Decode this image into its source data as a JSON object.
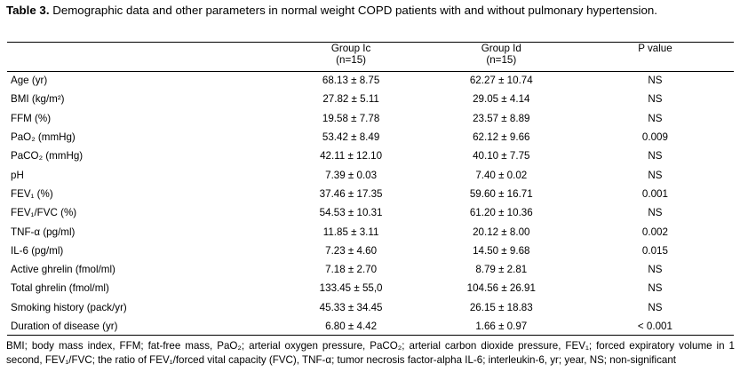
{
  "caption": {
    "label": "Table 3.",
    "text": "Demographic data and other parameters in normal weight COPD patients with and without pulmonary hypertension."
  },
  "columns": [
    {
      "name": "",
      "n": ""
    },
    {
      "name": "Group Ic",
      "n": "(n=15)"
    },
    {
      "name": "Group Id",
      "n": "(n=15)"
    },
    {
      "name": "P value",
      "n": ""
    }
  ],
  "rows": [
    {
      "param": "Age (yr)",
      "ic": "68.13 ± 8.75",
      "id": "62.27 ± 10.74",
      "p": "NS"
    },
    {
      "param": "BMI (kg/m²)",
      "ic": "27.82 ± 5.11",
      "id": "29.05 ± 4.14",
      "p": "NS"
    },
    {
      "param": "FFM (%)",
      "ic": "19.58 ± 7.78",
      "id": "23.57 ± 8.89",
      "p": "NS"
    },
    {
      "param": "PaO₂ (mmHg)",
      "ic": "53.42 ± 8.49",
      "id": "62.12 ± 9.66",
      "p": "0.009"
    },
    {
      "param": "PaCO₂ (mmHg)",
      "ic": "42.11 ± 12.10",
      "id": "40.10 ± 7.75",
      "p": "NS"
    },
    {
      "param": "pH",
      "ic": "7.39 ± 0.03",
      "id": "7.40 ± 0.02",
      "p": "NS"
    },
    {
      "param": "FEV₁ (%)",
      "ic": "37.46 ± 17.35",
      "id": "59.60 ± 16.71",
      "p": "0.001"
    },
    {
      "param": "FEV₁/FVC (%)",
      "ic": "54.53 ± 10.31",
      "id": "61.20 ± 10.36",
      "p": "NS"
    },
    {
      "param": "TNF-α (pg/ml)",
      "ic": "11.85 ± 3.11",
      "id": "20.12 ± 8.00",
      "p": "0.002"
    },
    {
      "param": "IL-6 (pg/ml)",
      "ic": "7.23 ± 4.60",
      "id": "14.50 ± 9.68",
      "p": "0.015"
    },
    {
      "param": "Active ghrelin (fmol/ml)",
      "ic": "7.18 ± 2.70",
      "id": "8.79 ± 2.81",
      "p": "NS"
    },
    {
      "param": "Total ghrelin (fmol/ml)",
      "ic": "133.45 ± 55,0",
      "id": "104.56 ± 26.91",
      "p": "NS"
    },
    {
      "param": "Smoking history (pack/yr)",
      "ic": "45.33 ± 34.45",
      "id": "26.15 ± 18.83",
      "p": "NS"
    },
    {
      "param": "Duration of disease (yr)",
      "ic": "6.80 ± 4.42",
      "id": "1.66 ± 0.97",
      "p": "< 0.001"
    }
  ],
  "footnote": "BMI; body mass index, FFM; fat-free mass, PaO₂; arterial oxygen pressure, PaCO₂; arterial carbon dioxide pressure, FEV₁; forced expiratory volume in 1 second, FEV₁/FVC; the ratio of  FEV₁/forced vital capacity (FVC), TNF-α; tumor necrosis factor-alpha IL-6; interleukin-6, yr; year, NS; non-significant"
}
